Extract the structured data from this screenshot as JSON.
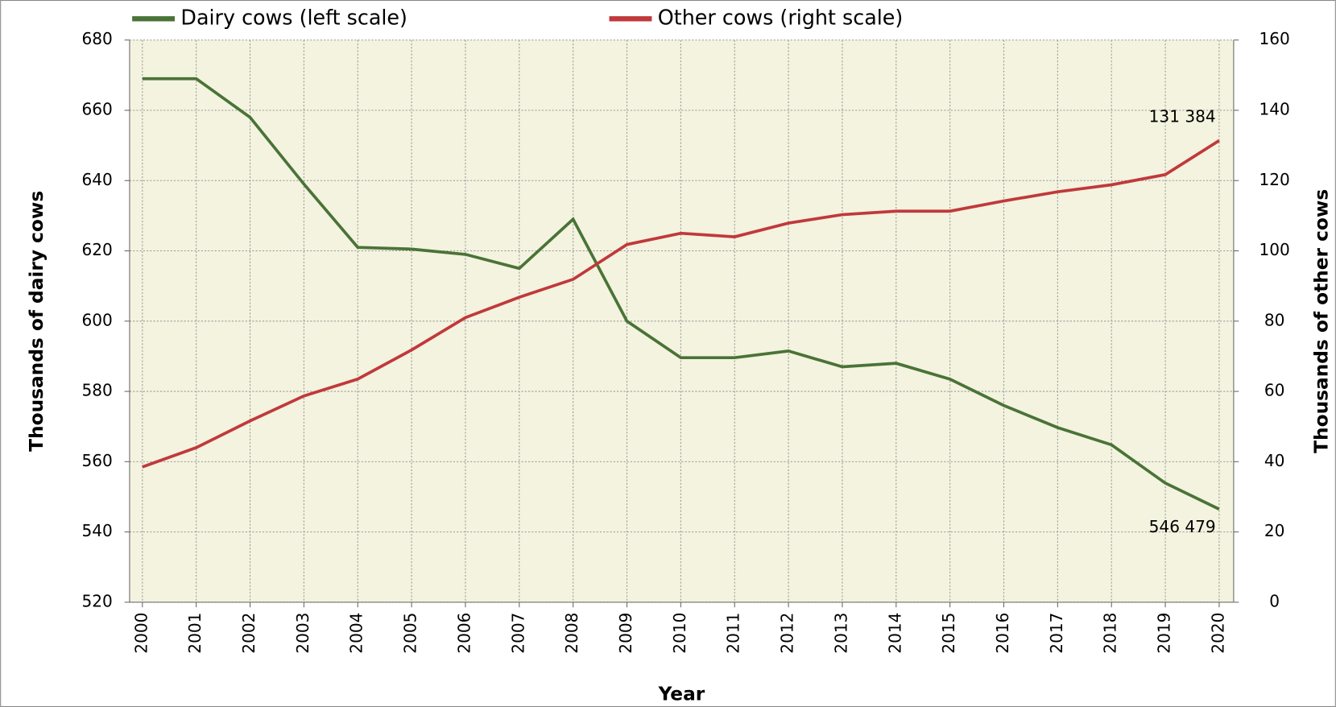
{
  "chart_data": {
    "type": "line",
    "xlabel": "Year",
    "ylabel": "Thousands of dairy cows",
    "y2label": "Thousands of other cows",
    "categories": [
      "2000",
      "2001",
      "2002",
      "2003",
      "2004",
      "2005",
      "2006",
      "2007",
      "2008",
      "2009",
      "2010",
      "2011",
      "2012",
      "2013",
      "2014",
      "2015",
      "2016",
      "2017",
      "2018",
      "2019",
      "2020"
    ],
    "series": [
      {
        "name": "Dairy cows (left scale)",
        "color": "#4a7337",
        "values": [
          669,
          669,
          658,
          639,
          621,
          620.5,
          619,
          615,
          629,
          600,
          589.6,
          589.6,
          591.5,
          587,
          588,
          583.5,
          576,
          569.7,
          564.8,
          553.9,
          546.479
        ],
        "value_labels": [
          null,
          null,
          null,
          null,
          null,
          null,
          null,
          null,
          null,
          null,
          null,
          null,
          null,
          null,
          null,
          null,
          null,
          null,
          null,
          null,
          "546 479"
        ]
      },
      {
        "name": "Other cows (right scale)",
        "color": "#c0393b",
        "axis": "y2",
        "values": [
          38.5,
          44,
          51.6,
          58.7,
          63.5,
          71.8,
          81,
          86.8,
          91.9,
          101.8,
          105,
          104,
          107.9,
          110.3,
          111.3,
          111.3,
          114.2,
          116.8,
          118.8,
          121.7,
          131.384
        ],
        "value_labels": [
          null,
          null,
          null,
          null,
          null,
          null,
          null,
          null,
          null,
          null,
          null,
          null,
          null,
          null,
          null,
          null,
          null,
          null,
          null,
          null,
          "131 384"
        ]
      }
    ],
    "ylim": [
      520,
      680
    ],
    "yticks": [
      520,
      540,
      560,
      580,
      600,
      620,
      640,
      660,
      680
    ],
    "y2lim": [
      0,
      160
    ],
    "y2ticks": [
      0,
      20,
      40,
      60,
      80,
      100,
      120,
      140,
      160
    ],
    "grid": true,
    "legend": "top"
  }
}
